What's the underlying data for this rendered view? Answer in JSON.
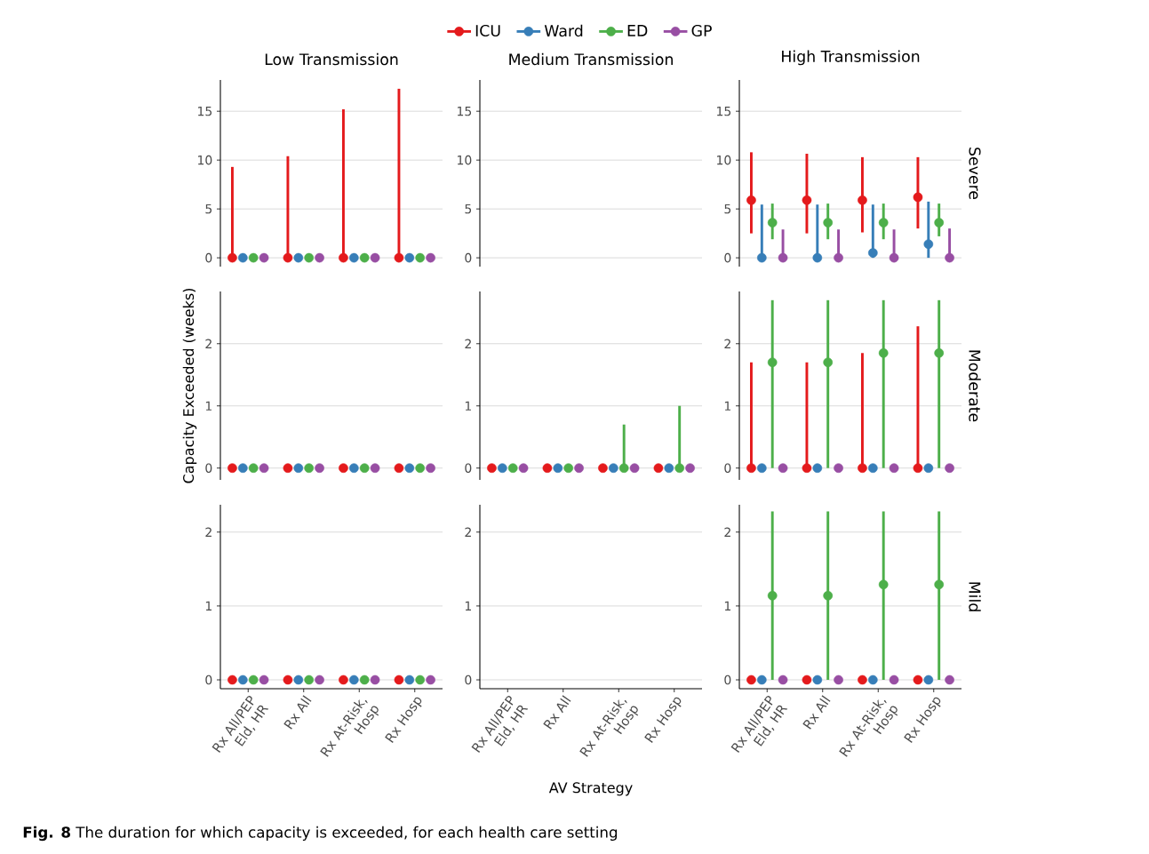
{
  "chart_data": [
    {
      "type": "scatter",
      "title": "Low Transmission",
      "categories": [
        null,
        null,
        null,
        null
      ],
      "ylim": [
        -0.9,
        18.2
      ],
      "yticks": [
        0,
        5,
        10,
        15
      ],
      "grid": "y",
      "marker": "circle",
      "tick_labels": "y",
      "legend": "top",
      "series": [
        {
          "name": "ICU",
          "color": "#e41a1c",
          "values": [
            0,
            0,
            0,
            0
          ],
          "errors": [
            [
              0,
              9.3
            ],
            [
              0,
              10.4
            ],
            [
              0,
              15.2
            ],
            [
              0,
              17.3
            ]
          ]
        },
        {
          "name": "Ward",
          "color": "#377eb8",
          "values": [
            0,
            0,
            0,
            0
          ]
        },
        {
          "name": "ED",
          "color": "#4daf4a",
          "values": [
            0,
            0,
            0,
            0
          ]
        },
        {
          "name": "GP",
          "color": "#984ea3",
          "values": [
            0,
            0,
            0,
            0
          ]
        }
      ]
    },
    {
      "type": "scatter",
      "title": "Medium Transmission",
      "categories": [
        null,
        null,
        null,
        null
      ],
      "ylim": [
        -0.9,
        18.2
      ],
      "yticks": [
        0,
        5,
        10,
        15
      ],
      "grid": "y",
      "marker": "circle",
      "tick_labels": "y"
    },
    {
      "type": "scatter",
      "title": "High Transmission",
      "y2label": "Severe",
      "categories": [
        null,
        null,
        null,
        null
      ],
      "ylim": [
        -0.9,
        18.2
      ],
      "yticks": [
        0,
        5,
        10,
        15
      ],
      "grid": "y",
      "marker": "circle",
      "tick_labels": "y",
      "series": [
        {
          "color": "#e41a1c",
          "values": [
            5.9,
            5.9,
            5.9,
            6.2
          ],
          "errors": [
            [
              2.5,
              10.8
            ],
            [
              2.5,
              10.65
            ],
            [
              2.6,
              10.3
            ],
            [
              3.0,
              10.3
            ]
          ]
        },
        {
          "color": "#377eb8",
          "values": [
            0,
            0,
            0.5,
            1.4
          ],
          "errors": [
            [
              0,
              5.45
            ],
            [
              0,
              5.45
            ],
            [
              0,
              5.45
            ],
            [
              0,
              5.75
            ]
          ]
        },
        {
          "color": "#4daf4a",
          "values": [
            3.6,
            3.6,
            3.6,
            3.6
          ],
          "errors": [
            [
              1.9,
              5.55
            ],
            [
              1.9,
              5.55
            ],
            [
              1.9,
              5.55
            ],
            [
              2.2,
              5.55
            ]
          ]
        },
        {
          "color": "#984ea3",
          "values": [
            0,
            0,
            0,
            0
          ],
          "errors": [
            [
              0,
              2.9
            ],
            [
              0,
              2.9
            ],
            [
              0,
              2.9
            ],
            [
              0,
              3.0
            ]
          ]
        }
      ]
    },
    {
      "type": "scatter",
      "ylabel": "Capacity Exceeded (weeks)",
      "categories": [
        null,
        null,
        null,
        null
      ],
      "ylim": [
        -0.19,
        2.84
      ],
      "yticks": [
        0,
        1,
        2
      ],
      "grid": "y",
      "marker": "circle",
      "tick_labels": "y",
      "series": [
        {
          "color": "#e41a1c",
          "values": [
            0,
            0,
            0,
            0
          ]
        },
        {
          "color": "#377eb8",
          "values": [
            0,
            0,
            0,
            0
          ]
        },
        {
          "color": "#4daf4a",
          "values": [
            0,
            0,
            0,
            0
          ]
        },
        {
          "color": "#984ea3",
          "values": [
            0,
            0,
            0,
            0
          ]
        }
      ]
    },
    {
      "type": "scatter",
      "categories": [
        null,
        null,
        null,
        null
      ],
      "ylim": [
        -0.19,
        2.84
      ],
      "yticks": [
        0,
        1,
        2
      ],
      "grid": "y",
      "marker": "circle",
      "tick_labels": "y",
      "series": [
        {
          "color": "#e41a1c",
          "values": [
            0,
            0,
            0,
            0
          ]
        },
        {
          "color": "#377eb8",
          "values": [
            0,
            0,
            0,
            0
          ]
        },
        {
          "color": "#4daf4a",
          "values": [
            0,
            0,
            0,
            0
          ],
          "errors": [
            null,
            null,
            [
              0,
              0.7
            ],
            [
              0,
              1.0
            ]
          ]
        },
        {
          "color": "#984ea3",
          "values": [
            0,
            0,
            0,
            0
          ]
        }
      ]
    },
    {
      "type": "scatter",
      "y2label": "Moderate",
      "categories": [
        null,
        null,
        null,
        null
      ],
      "ylim": [
        -0.19,
        2.84
      ],
      "yticks": [
        0,
        1,
        2
      ],
      "grid": "y",
      "marker": "circle",
      "tick_labels": "y",
      "series": [
        {
          "color": "#e41a1c",
          "values": [
            0,
            0,
            0,
            0
          ],
          "errors": [
            [
              0,
              1.7
            ],
            [
              0,
              1.7
            ],
            [
              0,
              1.85
            ],
            [
              0,
              2.28
            ]
          ]
        },
        {
          "color": "#377eb8",
          "values": [
            0,
            0,
            0,
            0
          ]
        },
        {
          "color": "#4daf4a",
          "values": [
            1.7,
            1.7,
            1.85,
            1.85
          ],
          "errors": [
            [
              0,
              2.7
            ],
            [
              0,
              2.7
            ],
            [
              0,
              2.7
            ],
            [
              0,
              2.7
            ]
          ]
        },
        {
          "color": "#984ea3",
          "values": [
            0,
            0,
            0,
            0
          ]
        }
      ]
    },
    {
      "type": "scatter",
      "categories": [
        "Rx All/PEP Eld, HR",
        "Rx All",
        "Rx At-Risk, Hosp",
        "Rx Hosp"
      ],
      "ylim": [
        -0.12,
        2.37
      ],
      "yticks": [
        0,
        1,
        2
      ],
      "grid": "y",
      "marker": "circle",
      "annotations": [
        "**Fig. 8** The duration for which capacity is exceeded, for each health care setting"
      ],
      "series": [
        {
          "color": "#e41a1c",
          "values": [
            0,
            0,
            0,
            0
          ]
        },
        {
          "color": "#377eb8",
          "values": [
            0,
            0,
            0,
            0
          ]
        },
        {
          "color": "#4daf4a",
          "values": [
            0,
            0,
            0,
            0
          ]
        },
        {
          "color": "#984ea3",
          "values": [
            0,
            0,
            0,
            0
          ]
        }
      ]
    },
    {
      "type": "scatter",
      "xlabel": "AV Strategy",
      "categories": [
        "Rx All/PEP Eld, HR",
        "Rx All",
        "Rx At-Risk, Hosp",
        "Rx Hosp"
      ],
      "ylim": [
        -0.12,
        2.37
      ],
      "yticks": [
        0,
        1,
        2
      ],
      "grid": "y",
      "marker": "circle"
    },
    {
      "type": "scatter",
      "y2label": "Mild",
      "categories": [
        "Rx All/PEP Eld, HR",
        "Rx All",
        "Rx At-Risk, Hosp",
        "Rx Hosp"
      ],
      "ylim": [
        -0.12,
        2.37
      ],
      "yticks": [
        0,
        1,
        2
      ],
      "grid": "y",
      "marker": "circle",
      "series": [
        {
          "color": "#e41a1c",
          "values": [
            0,
            0,
            0,
            0
          ]
        },
        {
          "color": "#377eb8",
          "values": [
            0,
            0,
            0,
            0
          ]
        },
        {
          "color": "#4daf4a",
          "values": [
            1.14,
            1.14,
            1.29,
            1.29
          ],
          "errors": [
            [
              0,
              2.28
            ],
            [
              0,
              2.28
            ],
            [
              0,
              2.28
            ],
            [
              0,
              2.28
            ]
          ]
        },
        {
          "color": "#984ea3",
          "values": [
            0,
            0,
            0,
            0
          ]
        }
      ]
    }
  ]
}
